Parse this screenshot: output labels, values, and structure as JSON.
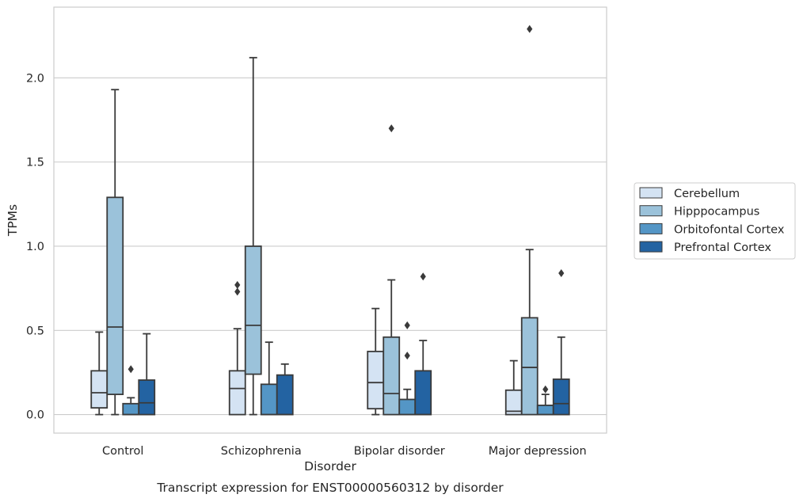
{
  "chart_data": {
    "type": "box",
    "title": "Transcript expression for ENST00000560312 by disorder",
    "xlabel": "Disorder",
    "ylabel": "TPMs",
    "ylim": [
      -0.11,
      2.42
    ],
    "yticks": [
      0.0,
      0.5,
      1.0,
      1.5,
      2.0
    ],
    "ytick_labels": [
      "0.0",
      "0.5",
      "1.0",
      "1.5",
      "2.0"
    ],
    "grid": "horizontal",
    "legend_position": "right",
    "categories": [
      "Control",
      "Schizophrenia",
      "Bipolar disorder",
      "Major depression"
    ],
    "series": [
      {
        "name": "Cerebellum",
        "color": "#d4e3f3",
        "boxes": [
          {
            "whislo": 0.0,
            "q1": 0.04,
            "med": 0.13,
            "q3": 0.26,
            "whishi": 0.49,
            "fliers": []
          },
          {
            "whislo": 0.0,
            "q1": 0.0,
            "med": 0.155,
            "q3": 0.26,
            "whishi": 0.51,
            "fliers": [
              0.73,
              0.77
            ]
          },
          {
            "whislo": 0.0,
            "q1": 0.035,
            "med": 0.19,
            "q3": 0.375,
            "whishi": 0.63,
            "fliers": []
          },
          {
            "whislo": 0.0,
            "q1": 0.0,
            "med": 0.02,
            "q3": 0.145,
            "whishi": 0.32,
            "fliers": []
          }
        ]
      },
      {
        "name": "Hipppocampus",
        "color": "#9bc2da",
        "boxes": [
          {
            "whislo": 0.0,
            "q1": 0.12,
            "med": 0.52,
            "q3": 1.29,
            "whishi": 1.93,
            "fliers": []
          },
          {
            "whislo": 0.0,
            "q1": 0.24,
            "med": 0.53,
            "q3": 1.0,
            "whishi": 2.12,
            "fliers": []
          },
          {
            "whislo": 0.0,
            "q1": 0.0,
            "med": 0.125,
            "q3": 0.46,
            "whishi": 0.8,
            "fliers": [
              1.7
            ]
          },
          {
            "whislo": 0.0,
            "q1": 0.0,
            "med": 0.28,
            "q3": 0.575,
            "whishi": 0.98,
            "fliers": [
              2.29
            ]
          }
        ]
      },
      {
        "name": "Orbitofontal Cortex",
        "color": "#5496c6",
        "boxes": [
          {
            "whislo": 0.0,
            "q1": 0.0,
            "med": 0.0,
            "q3": 0.065,
            "whishi": 0.1,
            "fliers": [
              0.27
            ]
          },
          {
            "whislo": 0.0,
            "q1": 0.0,
            "med": 0.0,
            "q3": 0.18,
            "whishi": 0.43,
            "fliers": []
          },
          {
            "whislo": 0.0,
            "q1": 0.0,
            "med": 0.0,
            "q3": 0.09,
            "whishi": 0.15,
            "fliers": [
              0.35,
              0.53
            ]
          },
          {
            "whislo": 0.0,
            "q1": 0.0,
            "med": 0.0,
            "q3": 0.055,
            "whishi": 0.12,
            "fliers": [
              0.15
            ]
          }
        ]
      },
      {
        "name": "Prefrontal Cortex",
        "color": "#2363a2",
        "boxes": [
          {
            "whislo": 0.0,
            "q1": 0.0,
            "med": 0.07,
            "q3": 0.205,
            "whishi": 0.48,
            "fliers": []
          },
          {
            "whislo": 0.0,
            "q1": 0.0,
            "med": 0.0,
            "q3": 0.235,
            "whishi": 0.3,
            "fliers": []
          },
          {
            "whislo": 0.0,
            "q1": 0.0,
            "med": 0.0,
            "q3": 0.26,
            "whishi": 0.44,
            "fliers": [
              0.82
            ]
          },
          {
            "whislo": 0.0,
            "q1": 0.0,
            "med": 0.065,
            "q3": 0.21,
            "whishi": 0.46,
            "fliers": [
              0.84
            ]
          }
        ]
      }
    ]
  }
}
